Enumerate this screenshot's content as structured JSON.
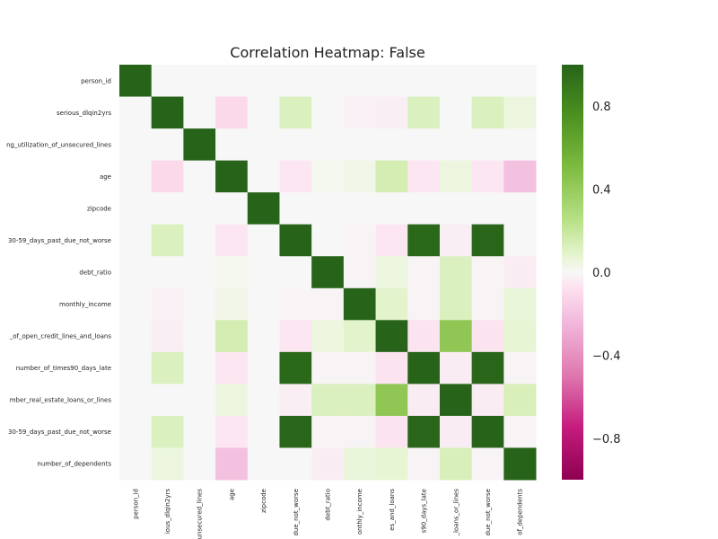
{
  "chart_data": {
    "type": "heatmap",
    "title": "Correlation Heatmap: False",
    "row_labels": [
      "person_id",
      "serious_dlqin2yrs",
      "ng_utilization_of_unsecured_lines",
      "age",
      "zipcode",
      "30-59_days_past_due_not_worse",
      "debt_ratio",
      "monthly_income",
      "_of_open_credit_lines_and_loans",
      "number_of_times90_days_late",
      "mber_real_estate_loans_or_lines",
      "30-59_days_past_due_not_worse",
      "number_of_dependents"
    ],
    "col_labels": [
      "person_id",
      "ious_dlqin2yrs",
      "unsecured_lines",
      "age",
      "zipcode",
      "due_not_worse",
      "debt_ratio",
      "onthly_income",
      "es_and_loans",
      "s90_days_late",
      "_loans_or_lines",
      "due_not_worse",
      "of_dependents"
    ],
    "values": [
      [
        1.0,
        0.0,
        0.0,
        0.0,
        0.0,
        0.0,
        0.0,
        0.0,
        0.0,
        0.0,
        0.0,
        0.0,
        0.0
      ],
      [
        0.0,
        1.0,
        0.0,
        -0.11,
        0.0,
        0.12,
        0.0,
        -0.02,
        -0.03,
        0.12,
        0.0,
        0.12,
        0.05
      ],
      [
        0.0,
        0.0,
        1.0,
        0.0,
        0.0,
        0.0,
        0.0,
        0.0,
        0.0,
        0.0,
        0.0,
        0.0,
        0.0
      ],
      [
        0.0,
        -0.11,
        0.0,
        1.0,
        0.0,
        -0.06,
        0.02,
        0.03,
        0.15,
        -0.06,
        0.05,
        -0.06,
        -0.21
      ],
      [
        0.0,
        0.0,
        0.0,
        0.0,
        1.0,
        0.0,
        0.0,
        0.0,
        0.0,
        0.0,
        0.0,
        0.0,
        0.0
      ],
      [
        0.0,
        0.12,
        0.0,
        -0.06,
        0.0,
        1.0,
        0.0,
        -0.01,
        -0.06,
        0.98,
        -0.03,
        0.99,
        0.0
      ],
      [
        0.0,
        0.0,
        0.0,
        0.02,
        0.0,
        0.0,
        1.0,
        -0.01,
        0.05,
        -0.01,
        0.12,
        -0.01,
        -0.04
      ],
      [
        0.0,
        -0.02,
        0.0,
        0.03,
        0.0,
        -0.01,
        -0.01,
        1.0,
        0.09,
        -0.01,
        0.12,
        -0.01,
        0.06
      ],
      [
        0.0,
        -0.03,
        0.0,
        0.15,
        0.0,
        -0.06,
        0.05,
        0.09,
        1.0,
        -0.07,
        0.43,
        -0.07,
        0.07
      ],
      [
        0.0,
        0.12,
        0.0,
        -0.06,
        0.0,
        0.98,
        -0.01,
        -0.01,
        -0.07,
        1.0,
        -0.04,
        0.99,
        -0.01
      ],
      [
        0.0,
        0.0,
        0.0,
        0.05,
        0.0,
        -0.03,
        0.12,
        0.12,
        0.43,
        -0.04,
        1.0,
        -0.04,
        0.13
      ],
      [
        0.0,
        0.12,
        0.0,
        -0.06,
        0.0,
        0.99,
        -0.01,
        -0.01,
        -0.07,
        0.99,
        -0.04,
        1.0,
        -0.01
      ],
      [
        0.0,
        0.05,
        0.0,
        -0.21,
        0.0,
        0.0,
        -0.04,
        0.06,
        0.07,
        -0.01,
        0.13,
        -0.01,
        1.0
      ]
    ],
    "vmin": -1.0,
    "vmax": 1.0,
    "colormap": "PiYG",
    "colorbar_ticks": [
      0.8,
      0.4,
      0.0,
      -0.4,
      -0.8
    ],
    "colorbar_tick_labels": [
      "0.8",
      "0.4",
      "0.0",
      "−0.4",
      "−0.8"
    ],
    "grid": false,
    "legend": "colorbar-right"
  }
}
